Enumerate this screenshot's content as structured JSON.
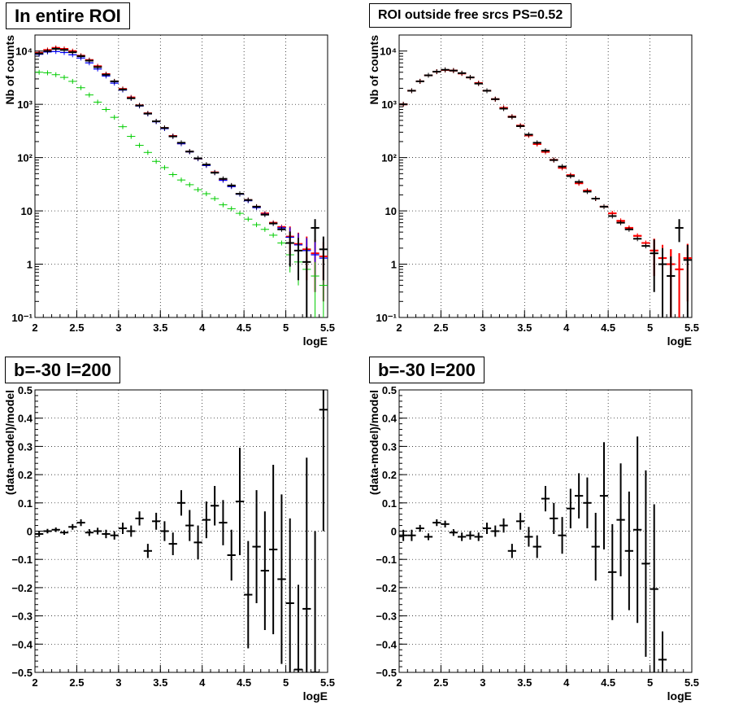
{
  "panels": [
    {
      "title": "In entire ROI",
      "xlabel": "logE",
      "ylabel": "Nb of counts",
      "log_y": true,
      "xlim": [
        2,
        5.5
      ],
      "ylim": [
        0.1,
        20000
      ],
      "x_ticks": [
        "2",
        "2.5",
        "3",
        "3.5",
        "4",
        "4.5",
        "5",
        "5.5"
      ],
      "y_ticks": [
        "10⁻¹",
        "1",
        "10",
        "10²",
        "10³",
        "10⁴"
      ],
      "grid": true
    },
    {
      "title": "ROI outside free srcs PS=0.52",
      "xlabel": "logE",
      "ylabel": "Nb of counts",
      "log_y": true,
      "xlim": [
        2,
        5.5
      ],
      "ylim": [
        0.1,
        20000
      ],
      "x_ticks": [
        "2",
        "2.5",
        "3",
        "3.5",
        "4",
        "4.5",
        "5",
        "5.5"
      ],
      "y_ticks": [
        "10⁻¹",
        "1",
        "10",
        "10²",
        "10³",
        "10⁴"
      ],
      "grid": true
    },
    {
      "title": "b=-30 l=200",
      "xlabel": "logE",
      "ylabel": "(data-model)/model",
      "log_y": false,
      "xlim": [
        2,
        5.5
      ],
      "ylim": [
        -0.5,
        0.5
      ],
      "x_ticks": [
        "2",
        "2.5",
        "3",
        "3.5",
        "4",
        "4.5",
        "5",
        "5.5"
      ],
      "y_ticks": [
        "−0.5",
        "−0.4",
        "−0.3",
        "−0.2",
        "−0.1",
        "0",
        "0.1",
        "0.2",
        "0.3",
        "0.4",
        "0.5"
      ],
      "grid": true
    },
    {
      "title": "b=-30 l=200",
      "xlabel": "logE",
      "ylabel": "(data-model)/model",
      "log_y": false,
      "xlim": [
        2,
        5.5
      ],
      "ylim": [
        -0.5,
        0.5
      ],
      "x_ticks": [
        "2",
        "2.5",
        "3",
        "3.5",
        "4",
        "4.5",
        "5",
        "5.5"
      ],
      "y_ticks": [
        "−0.5",
        "−0.4",
        "−0.3",
        "−0.2",
        "−0.1",
        "0",
        "0.1",
        "0.2",
        "0.3",
        "0.4",
        "0.5"
      ],
      "grid": true
    }
  ],
  "colors": {
    "data": "#000000",
    "model_total": "#ff0000",
    "model_blue": "#0000ff",
    "model_green": "#00cc00",
    "grid": "#000000"
  },
  "chart_data": [
    {
      "type": "scatter",
      "title": "In entire ROI",
      "xlabel": "logE",
      "ylabel": "Nb of counts",
      "ylim": [
        0.1,
        20000
      ],
      "x": [
        2.05,
        2.15,
        2.25,
        2.35,
        2.45,
        2.55,
        2.65,
        2.75,
        2.85,
        2.95,
        3.05,
        3.15,
        3.25,
        3.35,
        3.45,
        3.55,
        3.65,
        3.75,
        3.85,
        3.95,
        4.05,
        4.15,
        4.25,
        4.35,
        4.45,
        4.55,
        4.65,
        4.75,
        4.85,
        4.95,
        5.05,
        5.15,
        5.25,
        5.35,
        5.45
      ],
      "series": [
        {
          "values": [
            9300,
            10500,
            11500,
            11000,
            10000,
            8200,
            6800,
            5200,
            3700,
            2700,
            1950,
            1350,
            960,
            680,
            480,
            360,
            255,
            185,
            130,
            96,
            72,
            53,
            38,
            29,
            21,
            16,
            12,
            9,
            6,
            5,
            3.3,
            2.4,
            1.9,
            1.6,
            1.4
          ],
          "errors": [
            0,
            0,
            0,
            0,
            0,
            0,
            0,
            0,
            0,
            0,
            0,
            0,
            0,
            0,
            0,
            0,
            0,
            0,
            0,
            0,
            0,
            0,
            0,
            0,
            0,
            0,
            0,
            0,
            0,
            0,
            1.8,
            1.5,
            1.4,
            1.3,
            1.2
          ]
        },
        {
          "values": [
            8700,
            9600,
            9800,
            9400,
            8500,
            7400,
            6000,
            4600,
            3400,
            2500,
            1850,
            1300,
            930,
            660,
            470,
            350,
            250,
            182,
            128,
            95,
            71,
            52,
            37.5,
            28.5,
            20.5,
            15.5,
            11.5,
            8.7,
            5.8,
            4.8,
            3.2,
            2.3,
            1.8,
            1.5,
            1.3
          ],
          "errors": [
            0,
            0,
            0,
            0,
            0,
            0,
            0,
            0,
            0,
            0,
            0,
            0,
            0,
            0,
            0,
            0,
            0,
            0,
            0,
            0,
            0,
            0,
            0,
            0,
            0,
            0,
            0,
            0,
            0,
            0,
            1.7,
            1.5,
            1.3,
            1.2,
            1.1
          ]
        },
        {
          "values": [
            4000,
            3900,
            3600,
            3200,
            2700,
            2050,
            1500,
            1100,
            800,
            570,
            380,
            250,
            170,
            125,
            85,
            65,
            48,
            38,
            31,
            25,
            21,
            17,
            13,
            11,
            9,
            7,
            5.5,
            4.5,
            3.5,
            2.5,
            1.5,
            1.1,
            0.8,
            0.6,
            0.4
          ],
          "errors": [
            0,
            0,
            0,
            0,
            0,
            0,
            0,
            0,
            0,
            0,
            0,
            0,
            0,
            0,
            0,
            0,
            0,
            0,
            0,
            0,
            0,
            0,
            0,
            0,
            0,
            0,
            0,
            0,
            0,
            0,
            0.8,
            0.7,
            0.6,
            0.5,
            0.35
          ]
        },
        {
          "values": [
            9000,
            10000,
            11000,
            10500,
            9500,
            8000,
            6600,
            5000,
            3600,
            2700,
            1900,
            1300,
            950,
            670,
            480,
            360,
            250,
            190,
            130,
            97,
            74,
            52,
            40,
            30,
            21,
            16,
            12,
            8.5,
            5.8,
            4.5,
            2.5,
            1.8,
            1.1,
            4.8,
            1.9
          ],
          "errors": [
            0,
            0,
            0,
            0,
            0,
            0,
            0,
            0,
            0,
            0,
            0,
            0,
            0,
            0,
            0,
            0,
            0,
            0,
            0,
            0,
            0,
            0,
            0,
            0,
            0,
            0,
            0,
            0,
            0,
            0,
            1.6,
            1.3,
            1.0,
            2.2,
            1.4
          ]
        }
      ]
    },
    {
      "type": "scatter",
      "title": "ROI outside free srcs PS=0.52",
      "xlabel": "logE",
      "ylabel": "Nb of counts",
      "ylim": [
        0.1,
        20000
      ],
      "x": [
        2.05,
        2.15,
        2.25,
        2.35,
        2.45,
        2.55,
        2.65,
        2.75,
        2.85,
        2.95,
        3.05,
        3.15,
        3.25,
        3.35,
        3.45,
        3.55,
        3.65,
        3.75,
        3.85,
        3.95,
        4.05,
        4.15,
        4.25,
        4.35,
        4.45,
        4.55,
        4.65,
        4.75,
        4.85,
        4.95,
        5.05,
        5.15,
        5.25,
        5.35,
        5.45
      ],
      "series": [
        {
          "values": [
            1000,
            1800,
            2700,
            3500,
            4100,
            4400,
            4300,
            3800,
            3200,
            2500,
            1800,
            1250,
            860,
            580,
            390,
            260,
            180,
            128,
            90,
            64,
            46,
            33,
            24,
            17,
            12,
            9,
            6.5,
            4.8,
            3.4,
            2.5,
            1.8,
            1.3,
            1.0,
            0.8,
            1.3
          ],
          "errors": [
            0,
            0,
            0,
            0,
            0,
            0,
            0,
            0,
            0,
            0,
            0,
            0,
            0,
            0,
            0,
            0,
            0,
            0,
            0,
            0,
            0,
            0,
            0,
            0,
            0,
            0,
            0,
            0,
            0,
            0,
            1.2,
            1.0,
            0.9,
            0.8,
            1.1
          ]
        },
        {
          "values": [
            1000,
            1800,
            2700,
            3500,
            4100,
            4400,
            4300,
            3800,
            3200,
            2500,
            1800,
            1250,
            860,
            590,
            400,
            265,
            180,
            130,
            91,
            66,
            47,
            33,
            24,
            17,
            12,
            9,
            6.5,
            4.8,
            3.4,
            2.5,
            1.8,
            1.3,
            1.0,
            0.8,
            1.3
          ],
          "errors": [
            0,
            0,
            0,
            0,
            0,
            0,
            0,
            0,
            0,
            0,
            0,
            0,
            0,
            0,
            0,
            0,
            0,
            0,
            0,
            0,
            0,
            0,
            0,
            0,
            0,
            0,
            0,
            0,
            0,
            0,
            1.2,
            1.0,
            0.9,
            0.8,
            1.1
          ]
        },
        {
          "values": [
            1000,
            1800,
            2700,
            3500,
            4100,
            4450,
            4300,
            3850,
            3200,
            2450,
            1800,
            1250,
            830,
            580,
            390,
            270,
            190,
            135,
            90,
            68,
            45,
            35,
            23,
            17,
            12,
            8,
            6,
            4.5,
            3,
            2.2,
            1.6,
            1.0,
            0.6,
            4.8,
            1.2
          ],
          "errors": [
            0,
            0,
            0,
            0,
            0,
            0,
            0,
            0,
            0,
            0,
            0,
            0,
            0,
            0,
            0,
            0,
            0,
            0,
            0,
            0,
            0,
            0,
            0,
            0,
            0,
            0,
            0,
            0,
            0,
            0,
            1.3,
            1.0,
            0.8,
            2.2,
            1.1
          ]
        }
      ]
    },
    {
      "type": "scatter",
      "title": "b=-30 l=200",
      "xlabel": "logE",
      "ylabel": "(data-model)/model",
      "ylim": [
        -0.5,
        0.5
      ],
      "x": [
        2.05,
        2.15,
        2.25,
        2.35,
        2.45,
        2.55,
        2.65,
        2.75,
        2.85,
        2.95,
        3.05,
        3.15,
        3.25,
        3.35,
        3.45,
        3.55,
        3.65,
        3.75,
        3.85,
        3.95,
        4.05,
        4.15,
        4.25,
        4.35,
        4.45,
        4.55,
        4.65,
        4.75,
        4.85,
        4.95,
        5.05,
        5.15,
        5.25,
        5.35,
        5.45
      ],
      "series": [
        {
          "values": [
            -0.01,
            0.0,
            0.005,
            -0.005,
            0.015,
            0.03,
            -0.005,
            0.0,
            -0.01,
            -0.015,
            0.01,
            0.0,
            0.045,
            -0.07,
            0.035,
            0.0,
            -0.045,
            0.1,
            0.02,
            -0.04,
            0.04,
            0.09,
            0.03,
            -0.085,
            0.105,
            -0.225,
            -0.055,
            -0.14,
            -0.065,
            -0.17,
            -0.255,
            -0.49,
            -0.275,
            -0.5,
            0.43
          ],
          "errors": [
            0.01,
            0.008,
            0.008,
            0.008,
            0.01,
            0.012,
            0.012,
            0.012,
            0.015,
            0.015,
            0.02,
            0.02,
            0.025,
            0.025,
            0.03,
            0.035,
            0.04,
            0.045,
            0.055,
            0.06,
            0.065,
            0.07,
            0.08,
            0.09,
            0.19,
            0.19,
            0.2,
            0.21,
            0.3,
            0.3,
            0.3,
            0.3,
            0.535,
            0.5,
            0.43
          ]
        }
      ]
    },
    {
      "type": "scatter",
      "title": "b=-30 l=200",
      "xlabel": "logE",
      "ylabel": "(data-model)/model",
      "ylim": [
        -0.5,
        0.5
      ],
      "x": [
        2.05,
        2.15,
        2.25,
        2.35,
        2.45,
        2.55,
        2.65,
        2.75,
        2.85,
        2.95,
        3.05,
        3.15,
        3.25,
        3.35,
        3.45,
        3.55,
        3.65,
        3.75,
        3.85,
        3.95,
        4.05,
        4.15,
        4.25,
        4.35,
        4.45,
        4.55,
        4.65,
        4.75,
        4.85,
        4.95,
        5.05,
        5.15
      ],
      "series": [
        {
          "values": [
            -0.015,
            -0.015,
            0.01,
            -0.02,
            0.03,
            0.025,
            -0.005,
            -0.02,
            -0.015,
            -0.02,
            0.01,
            0.0,
            0.02,
            -0.07,
            0.035,
            -0.02,
            -0.055,
            0.115,
            0.045,
            -0.015,
            0.08,
            0.125,
            0.1,
            -0.055,
            0.125,
            -0.145,
            0.04,
            -0.07,
            0.005,
            -0.115,
            -0.205,
            -0.455
          ],
          "errors": [
            0.02,
            0.02,
            0.012,
            0.012,
            0.012,
            0.012,
            0.012,
            0.015,
            0.015,
            0.015,
            0.02,
            0.02,
            0.025,
            0.025,
            0.03,
            0.035,
            0.04,
            0.045,
            0.055,
            0.065,
            0.07,
            0.08,
            0.09,
            0.12,
            0.19,
            0.17,
            0.2,
            0.21,
            0.33,
            0.33,
            0.3,
            0.1
          ]
        }
      ]
    }
  ]
}
